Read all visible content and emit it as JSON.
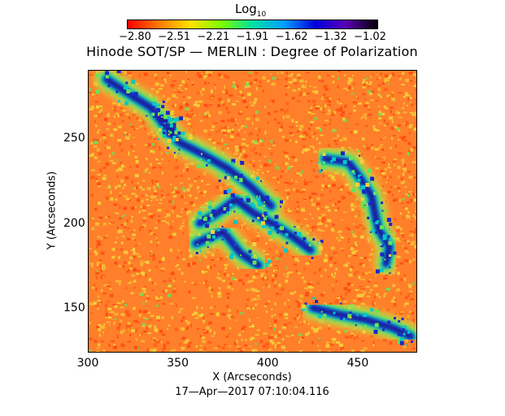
{
  "colorbar": {
    "title_main": "Log",
    "title_sub": "10",
    "tick_labels": [
      "−2.80",
      "−2.51",
      "−2.21",
      "−1.91",
      "−1.62",
      "−1.32",
      "−1.02"
    ],
    "range": [
      -2.8,
      -1.02
    ],
    "colors": [
      "#ff0000",
      "#ff7a00",
      "#ffe000",
      "#7cff00",
      "#00e0a0",
      "#00a0ff",
      "#0000e0",
      "#5a00b4",
      "#000000"
    ]
  },
  "plot": {
    "title": "Hinode SOT/SP — MERLIN : Degree of Polarization",
    "x_tick_labels": [
      "300",
      "350",
      "400",
      "450"
    ],
    "y_tick_labels": [
      "250",
      "200",
      "150"
    ],
    "xlabel": "X (Arcseconds)",
    "ylabel": "Y (Arcseconds)",
    "xlim": [
      300,
      483
    ],
    "ylim": [
      124,
      290
    ],
    "x_ticks": [
      300,
      350,
      400,
      450
    ],
    "y_ticks": [
      150,
      200,
      250
    ],
    "timestamp": "17—Apr—2017 07:10:04.116",
    "map_colors": {
      "background": "#ff7f2a",
      "speckle_red": "#ff4c12",
      "speckle_yellow": "#f2d23a",
      "network_green": "#62e65a",
      "network_cyan": "#00c8c8",
      "network_blue": "#1a28c8",
      "network_dark": "#1a1470"
    },
    "network_paths": [
      {
        "name": "upper-left-network",
        "points": [
          [
            310,
            285
          ],
          [
            320,
            278
          ],
          [
            335,
            268
          ],
          [
            342,
            258
          ],
          [
            350,
            248
          ],
          [
            365,
            240
          ],
          [
            378,
            232
          ],
          [
            390,
            222
          ],
          [
            402,
            210
          ]
        ]
      },
      {
        "name": "central-network",
        "points": [
          [
            362,
            200
          ],
          [
            372,
            206
          ],
          [
            382,
            214
          ],
          [
            392,
            206
          ],
          [
            402,
            200
          ],
          [
            414,
            192
          ],
          [
            424,
            184
          ]
        ]
      },
      {
        "name": "right-network",
        "points": [
          [
            432,
            238
          ],
          [
            445,
            236
          ],
          [
            452,
            226
          ],
          [
            458,
            216
          ],
          [
            460,
            205
          ],
          [
            462,
            196
          ],
          [
            468,
            186
          ],
          [
            466,
            176
          ]
        ]
      },
      {
        "name": "lower-right-network",
        "points": [
          [
            425,
            150
          ],
          [
            440,
            146
          ],
          [
            455,
            143
          ],
          [
            470,
            138
          ],
          [
            480,
            133
          ]
        ]
      },
      {
        "name": "cluster-left-mid",
        "points": [
          [
            340,
            262
          ],
          [
            348,
            258
          ],
          [
            345,
            252
          ]
        ]
      },
      {
        "name": "cluster-lower-mid",
        "points": [
          [
            360,
            188
          ],
          [
            375,
            195
          ],
          [
            385,
            182
          ],
          [
            395,
            175
          ]
        ]
      }
    ]
  }
}
